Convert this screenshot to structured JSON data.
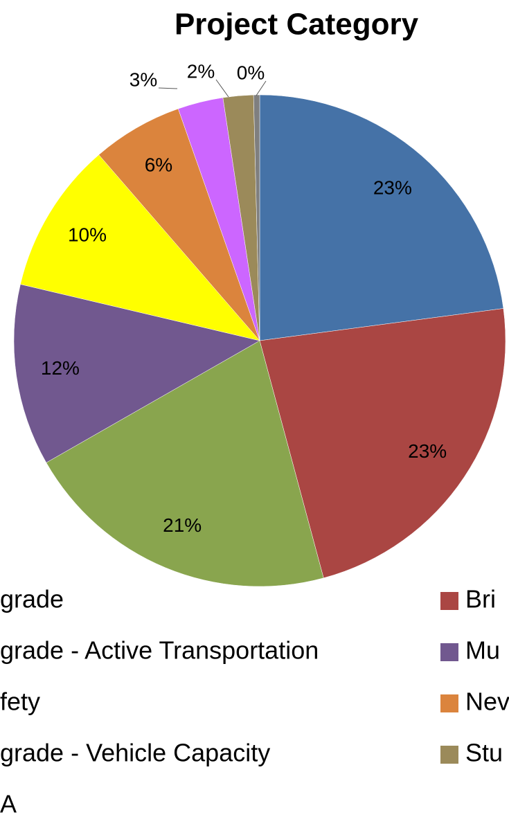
{
  "chart_data": {
    "type": "pie",
    "title": "Project Category",
    "categories": [
      "grade",
      "Bri",
      "grade - Active Transportation",
      "Mu",
      "fety",
      "Nev",
      "grade - Vehicle Capacity",
      "Stu",
      "A"
    ],
    "values": [
      23,
      23,
      21,
      12,
      10,
      6,
      3,
      2,
      0.4
    ],
    "value_labels": [
      "23%",
      "23%",
      "21%",
      "12%",
      "10%",
      "6%",
      "3%",
      "2%",
      "0%"
    ],
    "colors": [
      "#4572a7",
      "#aa4643",
      "#89a54e",
      "#71588f",
      "#ffff00",
      "#db843d",
      "#cc66ff",
      "#9b8a5a",
      "#7f7f7f"
    ]
  }
}
